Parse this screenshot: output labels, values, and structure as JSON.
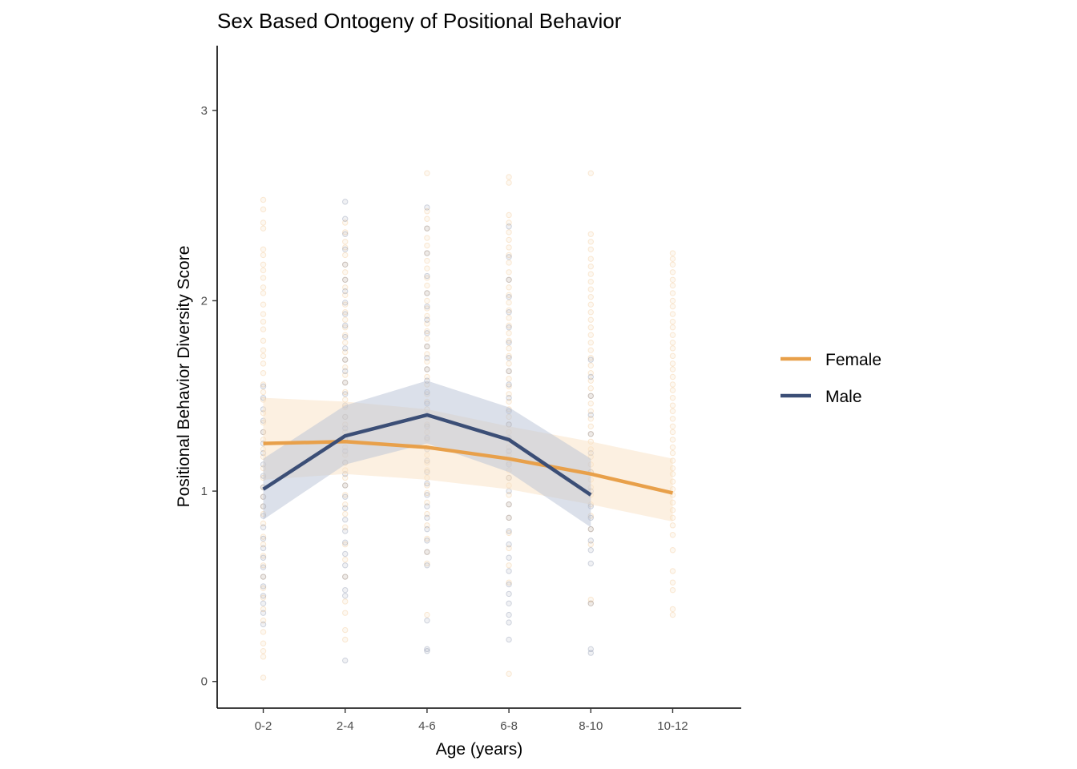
{
  "chart_data": {
    "type": "line",
    "title": "Sex Based Ontogeny of Positional Behavior",
    "xlabel": "Age (years)",
    "ylabel": "Positional Behavior Diversity Score",
    "categories": [
      "0-2",
      "2-4",
      "4-6",
      "6-8",
      "8-10",
      "10-12"
    ],
    "y_ticks": [
      "0",
      "1",
      "2",
      "3"
    ],
    "ylim": [
      -0.14,
      3.34
    ],
    "grid": false,
    "legend_position": "right",
    "series": [
      {
        "name": "Female",
        "color": "#E8A04A",
        "band_color": "#F9E1C3",
        "values": [
          1.25,
          1.26,
          1.23,
          1.17,
          1.09,
          0.99
        ],
        "ci_lower": [
          1.06,
          1.09,
          1.06,
          1.01,
          0.93,
          0.84
        ],
        "ci_upper": [
          1.49,
          1.47,
          1.43,
          1.34,
          1.26,
          1.17
        ]
      },
      {
        "name": "Male",
        "color": "#3B4E76",
        "band_color": "#B7C2D6",
        "values": [
          1.01,
          1.29,
          1.4,
          1.27,
          0.98,
          null
        ],
        "ci_lower": [
          0.85,
          1.14,
          1.25,
          1.1,
          0.81,
          null
        ],
        "ci_upper": [
          1.17,
          1.45,
          1.58,
          1.44,
          1.17,
          null
        ]
      }
    ],
    "points": {
      "Female": [
        [
          2.53,
          2.48,
          2.41,
          2.38,
          2.27,
          2.24,
          2.19,
          2.16,
          2.12,
          2.07,
          2.04,
          1.98,
          1.93,
          1.89,
          1.85,
          1.79,
          1.74,
          1.71,
          1.67,
          1.62,
          1.56,
          1.52,
          1.48,
          1.41,
          1.36,
          1.31,
          1.27,
          1.22,
          1.18,
          1.12,
          1.07,
          1.02,
          0.97,
          0.92,
          0.88,
          0.83,
          0.76,
          0.72,
          0.66,
          0.61,
          0.55,
          0.49,
          0.44,
          0.38,
          0.32,
          0.26,
          0.2,
          0.16,
          0.13,
          0.02
        ],
        [
          2.41,
          2.36,
          2.31,
          2.28,
          2.24,
          2.19,
          2.15,
          2.11,
          2.07,
          2.03,
          1.98,
          1.94,
          1.9,
          1.86,
          1.82,
          1.78,
          1.73,
          1.69,
          1.65,
          1.61,
          1.57,
          1.52,
          1.48,
          1.44,
          1.39,
          1.35,
          1.31,
          1.27,
          1.23,
          1.19,
          1.15,
          1.11,
          1.07,
          1.03,
          0.98,
          0.93,
          0.88,
          0.81,
          0.72,
          0.64,
          0.55,
          0.42,
          0.36,
          0.27,
          0.22
        ],
        [
          2.67,
          2.47,
          2.43,
          2.38,
          2.33,
          2.29,
          2.25,
          2.21,
          2.17,
          2.12,
          2.08,
          2.04,
          2.0,
          1.96,
          1.92,
          1.88,
          1.84,
          1.8,
          1.76,
          1.72,
          1.68,
          1.64,
          1.6,
          1.56,
          1.51,
          1.47,
          1.43,
          1.39,
          1.35,
          1.31,
          1.27,
          1.23,
          1.19,
          1.15,
          1.11,
          1.07,
          1.03,
          0.99,
          0.94,
          0.88,
          0.82,
          0.75,
          0.68,
          0.62,
          0.35
        ],
        [
          2.65,
          2.62,
          2.45,
          2.41,
          2.36,
          2.32,
          2.28,
          2.24,
          2.2,
          2.15,
          2.11,
          2.07,
          2.03,
          1.99,
          1.95,
          1.91,
          1.87,
          1.83,
          1.79,
          1.75,
          1.71,
          1.67,
          1.63,
          1.59,
          1.55,
          1.51,
          1.47,
          1.43,
          1.39,
          1.35,
          1.31,
          1.27,
          1.23,
          1.19,
          1.15,
          1.11,
          1.07,
          1.03,
          0.98,
          0.93,
          0.86,
          0.78,
          0.7,
          0.61,
          0.52,
          0.04
        ],
        [
          2.67,
          2.35,
          2.31,
          2.27,
          2.22,
          2.18,
          2.14,
          2.1,
          2.06,
          2.02,
          1.98,
          1.94,
          1.9,
          1.86,
          1.82,
          1.78,
          1.74,
          1.7,
          1.66,
          1.62,
          1.58,
          1.54,
          1.5,
          1.46,
          1.42,
          1.38,
          1.34,
          1.3,
          1.26,
          1.22,
          1.18,
          1.14,
          1.1,
          1.06,
          1.02,
          0.98,
          0.93,
          0.87,
          0.8,
          0.72,
          0.43,
          0.41
        ],
        [
          2.25,
          2.22,
          2.19,
          2.15,
          2.11,
          2.08,
          2.04,
          2.0,
          1.97,
          1.93,
          1.89,
          1.86,
          1.82,
          1.78,
          1.75,
          1.71,
          1.67,
          1.64,
          1.6,
          1.56,
          1.53,
          1.49,
          1.45,
          1.42,
          1.38,
          1.34,
          1.31,
          1.27,
          1.23,
          1.2,
          1.16,
          1.12,
          1.09,
          1.05,
          1.01,
          0.98,
          0.94,
          0.9,
          0.86,
          0.82,
          0.77,
          0.69,
          0.58,
          0.52,
          0.48,
          0.38,
          0.35
        ]
      ],
      "Male": [
        [
          1.55,
          1.49,
          1.43,
          1.37,
          1.31,
          1.25,
          1.2,
          1.14,
          1.08,
          1.02,
          0.97,
          0.92,
          0.87,
          0.81,
          0.75,
          0.7,
          0.65,
          0.6,
          0.55,
          0.5,
          0.45,
          0.41,
          0.36,
          0.3
        ],
        [
          2.52,
          2.43,
          2.35,
          2.27,
          2.19,
          2.11,
          2.05,
          1.99,
          1.93,
          1.87,
          1.81,
          1.75,
          1.69,
          1.63,
          1.57,
          1.51,
          1.45,
          1.39,
          1.33,
          1.27,
          1.21,
          1.15,
          1.09,
          1.03,
          0.97,
          0.91,
          0.85,
          0.79,
          0.73,
          0.67,
          0.61,
          0.55,
          0.48,
          0.45,
          0.11
        ],
        [
          2.49,
          2.38,
          2.25,
          2.13,
          2.04,
          1.97,
          1.9,
          1.83,
          1.76,
          1.7,
          1.64,
          1.58,
          1.52,
          1.46,
          1.4,
          1.34,
          1.28,
          1.22,
          1.16,
          1.1,
          1.04,
          0.98,
          0.92,
          0.86,
          0.8,
          0.74,
          0.68,
          0.61,
          0.32,
          0.17,
          0.16
        ],
        [
          2.39,
          2.23,
          2.11,
          2.02,
          1.94,
          1.86,
          1.78,
          1.7,
          1.63,
          1.56,
          1.49,
          1.42,
          1.35,
          1.28,
          1.21,
          1.14,
          1.07,
          1.0,
          0.93,
          0.86,
          0.79,
          0.72,
          0.65,
          0.58,
          0.51,
          0.46,
          0.41,
          0.35,
          0.31,
          0.22
        ],
        [
          1.69,
          1.6,
          1.5,
          1.4,
          1.3,
          1.2,
          1.1,
          1.0,
          0.92,
          0.86,
          0.8,
          0.74,
          0.69,
          0.62,
          0.41,
          0.17,
          0.15
        ]
      ]
    }
  }
}
